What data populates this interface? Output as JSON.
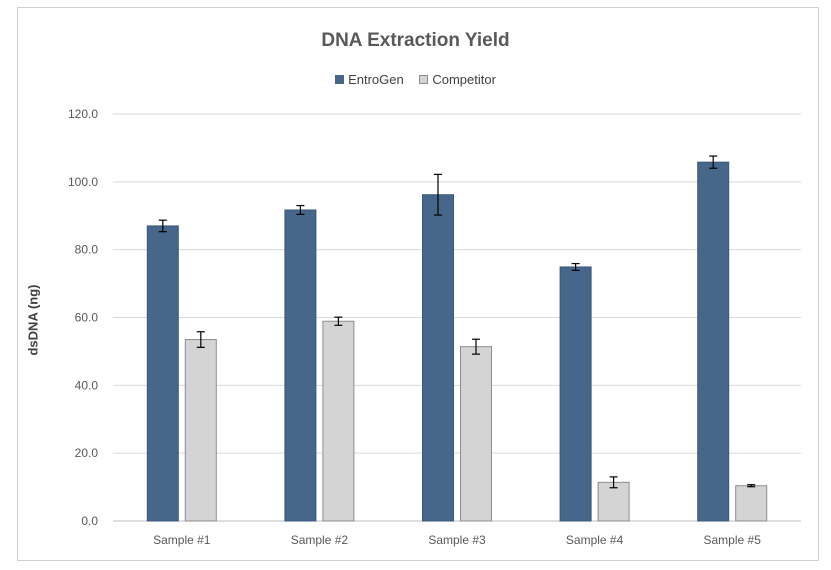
{
  "chart_data": {
    "type": "bar",
    "title": "DNA Extraction Yield",
    "ylabel": "dsDNA (ng)",
    "xlabel": "",
    "categories": [
      "Sample #1",
      "Sample #2",
      "Sample #3",
      "Sample #4",
      "Sample #5"
    ],
    "series": [
      {
        "name": "EntroGen",
        "color": "#46678a",
        "values": [
          87.0,
          91.7,
          96.2,
          74.9,
          105.8
        ],
        "errors": [
          1.7,
          1.3,
          6.0,
          1.0,
          1.8
        ]
      },
      {
        "name": "Competitor",
        "color": "#d4d4d4",
        "values": [
          53.5,
          58.9,
          51.4,
          11.4,
          10.4
        ],
        "errors": [
          2.3,
          1.2,
          2.2,
          1.6,
          0.3
        ]
      }
    ],
    "ylim": [
      0,
      120
    ],
    "yticks": [
      "0.0",
      "20.0",
      "40.0",
      "60.0",
      "80.0",
      "100.0",
      "120.0"
    ],
    "grid": true,
    "legend_position": "top-center"
  }
}
